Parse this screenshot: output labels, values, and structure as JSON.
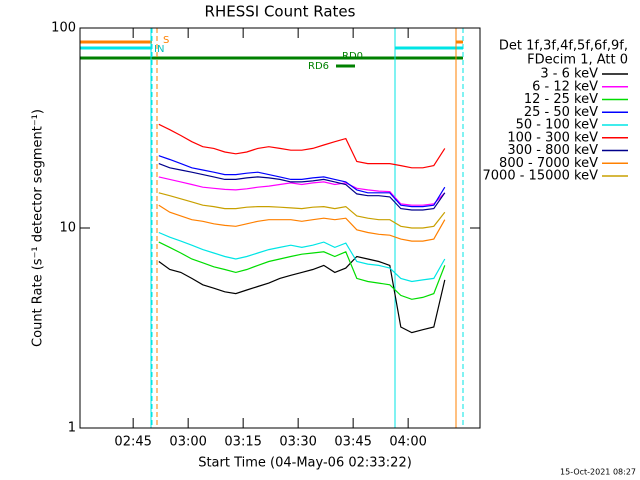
{
  "chart_data": {
    "type": "line",
    "title": "RHESSI Count Rates",
    "x_label": "Start Time (04-May-06 02:33:22)",
    "y_label": "Count Rate (s⁻¹ detector segment⁻¹)",
    "legend_header": [
      "Det 1f,3f,4f,5f,6f,9f,",
      "FDecim 1, Att 0"
    ],
    "footer": "15-Oct-2021 08:27",
    "annotations": [
      "S",
      "IN",
      "RD6",
      "RD0"
    ],
    "log_y": true,
    "ylim": [
      1,
      100
    ],
    "yticks": [
      1,
      10,
      100
    ],
    "xlim": [
      150.5,
      259.6
    ],
    "xticks": [
      {
        "value": 165,
        "label": "02:45"
      },
      {
        "value": 180,
        "label": "03:00"
      },
      {
        "value": 195,
        "label": "03:15"
      },
      {
        "value": 210,
        "label": "03:30"
      },
      {
        "value": 225,
        "label": "03:45"
      },
      {
        "value": 240,
        "label": "04:00"
      }
    ],
    "x": [
      172,
      175,
      178,
      181,
      184,
      187,
      190,
      193,
      196,
      199,
      202,
      205,
      208,
      211,
      214,
      217,
      220,
      223,
      226,
      229,
      232,
      235,
      238,
      241,
      244,
      247,
      250
    ],
    "series": [
      {
        "name": "3 - 6 keV",
        "color": "#000000",
        "values": [
          6.8,
          6.2,
          6.0,
          5.6,
          5.2,
          5.0,
          4.8,
          4.7,
          4.9,
          5.1,
          5.3,
          5.6,
          5.8,
          6.0,
          6.2,
          6.5,
          6.0,
          6.3,
          7.2,
          7.0,
          6.8,
          6.5,
          3.2,
          3.0,
          3.1,
          3.2,
          5.5
        ]
      },
      {
        "name": "6 - 12 keV",
        "color": "#ff00ff",
        "values": [
          18,
          17.5,
          17,
          16.5,
          16,
          15.8,
          15.6,
          15.5,
          15.7,
          16,
          16.2,
          16.5,
          16.8,
          16.5,
          16.8,
          17,
          16.5,
          16.8,
          15.8,
          15.5,
          15.3,
          15.2,
          13.2,
          13,
          13,
          13.2,
          15
        ]
      },
      {
        "name": "12 - 25 keV",
        "color": "#00dd00",
        "values": [
          8.5,
          8,
          7.5,
          7,
          6.7,
          6.4,
          6.2,
          6.0,
          6.2,
          6.5,
          6.8,
          7.0,
          7.2,
          7.4,
          7.5,
          7.6,
          7.2,
          7.6,
          5.6,
          5.4,
          5.3,
          5.2,
          4.6,
          4.4,
          4.5,
          4.7,
          6.5
        ]
      },
      {
        "name": "25 - 50 keV",
        "color": "#0000ff",
        "values": [
          23,
          22,
          21,
          20,
          19.5,
          19,
          18.5,
          18.5,
          18.8,
          19,
          18.5,
          18,
          17.5,
          17.5,
          17.8,
          18,
          17.5,
          17,
          15.5,
          15,
          15,
          15,
          13,
          12.8,
          12.8,
          13,
          16
        ]
      },
      {
        "name": "50 - 100 keV",
        "color": "#00e5e5",
        "values": [
          9.5,
          9,
          8.6,
          8.2,
          7.8,
          7.5,
          7.2,
          7.0,
          7.2,
          7.5,
          7.8,
          8.0,
          8.2,
          8.0,
          8.2,
          8.5,
          8.0,
          8.4,
          6.8,
          6.6,
          6.5,
          6.3,
          5.6,
          5.4,
          5.5,
          5.6,
          7
        ]
      },
      {
        "name": "100 - 300 keV",
        "color": "#ff0000",
        "values": [
          33,
          31,
          29,
          27,
          25.5,
          25,
          24,
          23.5,
          24,
          25,
          25.5,
          25,
          24.5,
          24.5,
          25,
          26,
          27,
          28,
          21.5,
          21,
          21,
          21,
          20.5,
          20,
          20,
          20.5,
          25
        ]
      },
      {
        "name": "300 - 800 keV",
        "color": "#00008b",
        "values": [
          21,
          20,
          19.5,
          19,
          18.5,
          18,
          17.5,
          17.5,
          17.8,
          18,
          17.8,
          17.5,
          17,
          17,
          17.2,
          17.5,
          17,
          16.5,
          14.8,
          14.5,
          14.5,
          14.3,
          12.5,
          12.3,
          12.3,
          12.5,
          15
        ]
      },
      {
        "name": "800 - 7000 keV",
        "color": "#ff8000",
        "values": [
          13,
          12,
          11.5,
          11,
          10.8,
          10.5,
          10.3,
          10.2,
          10.5,
          10.8,
          11,
          11,
          11,
          10.8,
          11,
          11.2,
          11,
          11.2,
          9.8,
          9.5,
          9.3,
          9.2,
          8.8,
          8.6,
          8.6,
          8.8,
          11
        ]
      },
      {
        "name": "7000 - 15000 keV",
        "color": "#c8a000",
        "values": [
          15,
          14.5,
          14,
          13.5,
          13,
          12.8,
          12.5,
          12.5,
          12.7,
          12.8,
          12.8,
          12.7,
          12.6,
          12.5,
          12.7,
          12.8,
          12.5,
          12.8,
          11.5,
          11.2,
          11,
          11,
          10.2,
          10,
          10,
          10.2,
          12
        ]
      }
    ]
  }
}
